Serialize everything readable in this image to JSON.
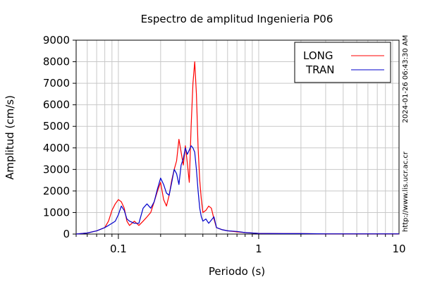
{
  "chart_data": {
    "type": "line",
    "title": "Espectro de amplitud Ingenieria P06",
    "xlabel": "Periodo (s)",
    "ylabel": "Amplitud (cm/s)",
    "x_scale": "log",
    "xlim": [
      0.05,
      10
    ],
    "ylim": [
      0,
      9000
    ],
    "grid": true,
    "legend_position": "top-right",
    "x_tick_labels": [
      "0.1",
      "1",
      "10"
    ],
    "y_tick_labels": [
      "0",
      "1000",
      "2000",
      "3000",
      "4000",
      "5000",
      "6000",
      "7000",
      "8000",
      "9000"
    ],
    "side_labels": {
      "timestamp": "2024-01-26 06:43:30 AM",
      "url": "http://www.lis.ucr.ac.cr"
    },
    "series": [
      {
        "name": "LONG",
        "color": "#ff0000",
        "x": [
          0.05,
          0.06,
          0.07,
          0.08,
          0.085,
          0.09,
          0.095,
          0.1,
          0.105,
          0.11,
          0.115,
          0.12,
          0.13,
          0.14,
          0.15,
          0.16,
          0.17,
          0.18,
          0.19,
          0.2,
          0.21,
          0.22,
          0.23,
          0.24,
          0.25,
          0.26,
          0.27,
          0.28,
          0.29,
          0.3,
          0.31,
          0.32,
          0.33,
          0.34,
          0.35,
          0.36,
          0.37,
          0.38,
          0.39,
          0.4,
          0.42,
          0.44,
          0.46,
          0.48,
          0.5,
          0.55,
          0.6,
          0.7,
          0.8,
          1.0,
          1.5,
          2.0,
          3.0,
          5.0,
          10.0
        ],
        "y": [
          0,
          50,
          150,
          300,
          600,
          1100,
          1400,
          1600,
          1500,
          1200,
          600,
          400,
          600,
          400,
          600,
          800,
          1000,
          1500,
          2000,
          2400,
          1600,
          1300,
          1800,
          2500,
          3000,
          3400,
          4400,
          3800,
          3200,
          4100,
          3300,
          2400,
          5000,
          7000,
          8000,
          6500,
          4000,
          2500,
          1600,
          1000,
          1100,
          1300,
          1200,
          700,
          300,
          200,
          150,
          100,
          70,
          30,
          20,
          20,
          10,
          10,
          10
        ]
      },
      {
        "name": "TRAN",
        "color": "#0000cc",
        "x": [
          0.05,
          0.06,
          0.07,
          0.08,
          0.085,
          0.09,
          0.095,
          0.1,
          0.105,
          0.11,
          0.115,
          0.12,
          0.13,
          0.14,
          0.15,
          0.16,
          0.17,
          0.18,
          0.19,
          0.2,
          0.21,
          0.22,
          0.23,
          0.24,
          0.25,
          0.26,
          0.27,
          0.28,
          0.29,
          0.3,
          0.31,
          0.32,
          0.33,
          0.34,
          0.35,
          0.36,
          0.37,
          0.38,
          0.39,
          0.4,
          0.42,
          0.44,
          0.46,
          0.48,
          0.5,
          0.55,
          0.6,
          0.7,
          0.8,
          1.0,
          1.5,
          2.0,
          3.0,
          5.0,
          10.0
        ],
        "y": [
          0,
          50,
          150,
          300,
          400,
          500,
          600,
          900,
          1300,
          1100,
          700,
          600,
          500,
          500,
          1200,
          1400,
          1200,
          1500,
          2100,
          2600,
          2300,
          1900,
          1800,
          2400,
          3000,
          2800,
          2300,
          3200,
          3500,
          4000,
          3700,
          3900,
          4100,
          4000,
          3800,
          3000,
          2000,
          1200,
          800,
          600,
          700,
          500,
          650,
          800,
          300,
          200,
          150,
          120,
          70,
          30,
          20,
          20,
          10,
          10,
          10
        ]
      }
    ]
  }
}
